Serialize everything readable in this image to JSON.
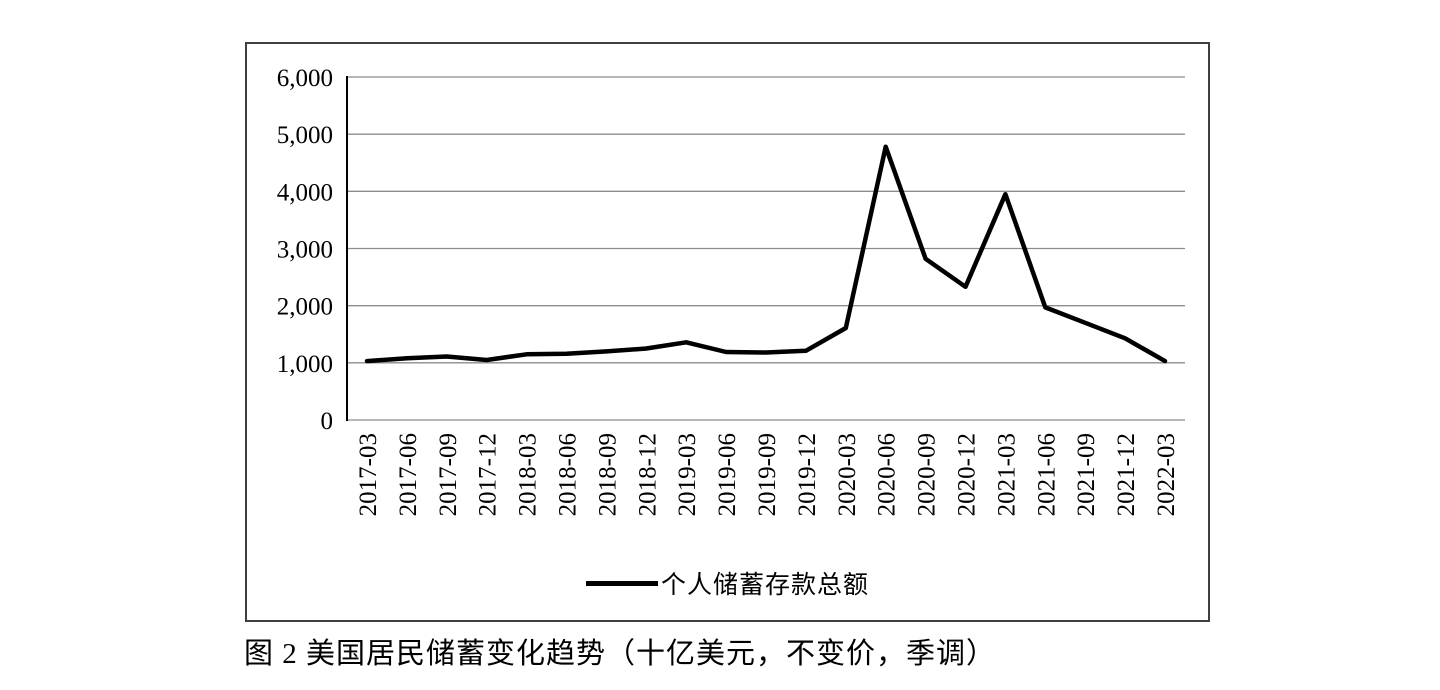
{
  "figure": {
    "caption": "图 2 美国居民储蓄变化趋势（十亿美元，不变价，季调）"
  },
  "colors": {
    "line": "#000000",
    "grid": "#8c8c8c",
    "axis": "#000000",
    "frame_border": "#3f3f3f",
    "background": "#ffffff"
  },
  "chart_data": {
    "type": "line",
    "title": "",
    "xlabel": "",
    "ylabel": "",
    "ylim": [
      0,
      6000
    ],
    "ytick_step": 1000,
    "grid": true,
    "legend_position": "bottom",
    "legend": [
      "个人储蓄存款总额"
    ],
    "yticks": [
      {
        "value": 0,
        "label": "0"
      },
      {
        "value": 1000,
        "label": "1,000"
      },
      {
        "value": 2000,
        "label": "2,000"
      },
      {
        "value": 3000,
        "label": "3,000"
      },
      {
        "value": 4000,
        "label": "4,000"
      },
      {
        "value": 5000,
        "label": "5,000"
      },
      {
        "value": 6000,
        "label": "6,000"
      }
    ],
    "categories": [
      "2017-03",
      "2017-06",
      "2017-09",
      "2017-12",
      "2018-03",
      "2018-06",
      "2018-09",
      "2018-12",
      "2019-03",
      "2019-06",
      "2019-09",
      "2019-12",
      "2020-03",
      "2020-06",
      "2020-09",
      "2020-12",
      "2021-03",
      "2021-06",
      "2021-09",
      "2021-12",
      "2022-03"
    ],
    "series": [
      {
        "name": "个人储蓄存款总额",
        "values": [
          1030,
          1080,
          1110,
          1050,
          1150,
          1160,
          1200,
          1250,
          1360,
          1190,
          1180,
          1210,
          1610,
          4780,
          2820,
          2330,
          3950,
          1970,
          1700,
          1430,
          1030
        ]
      }
    ]
  }
}
